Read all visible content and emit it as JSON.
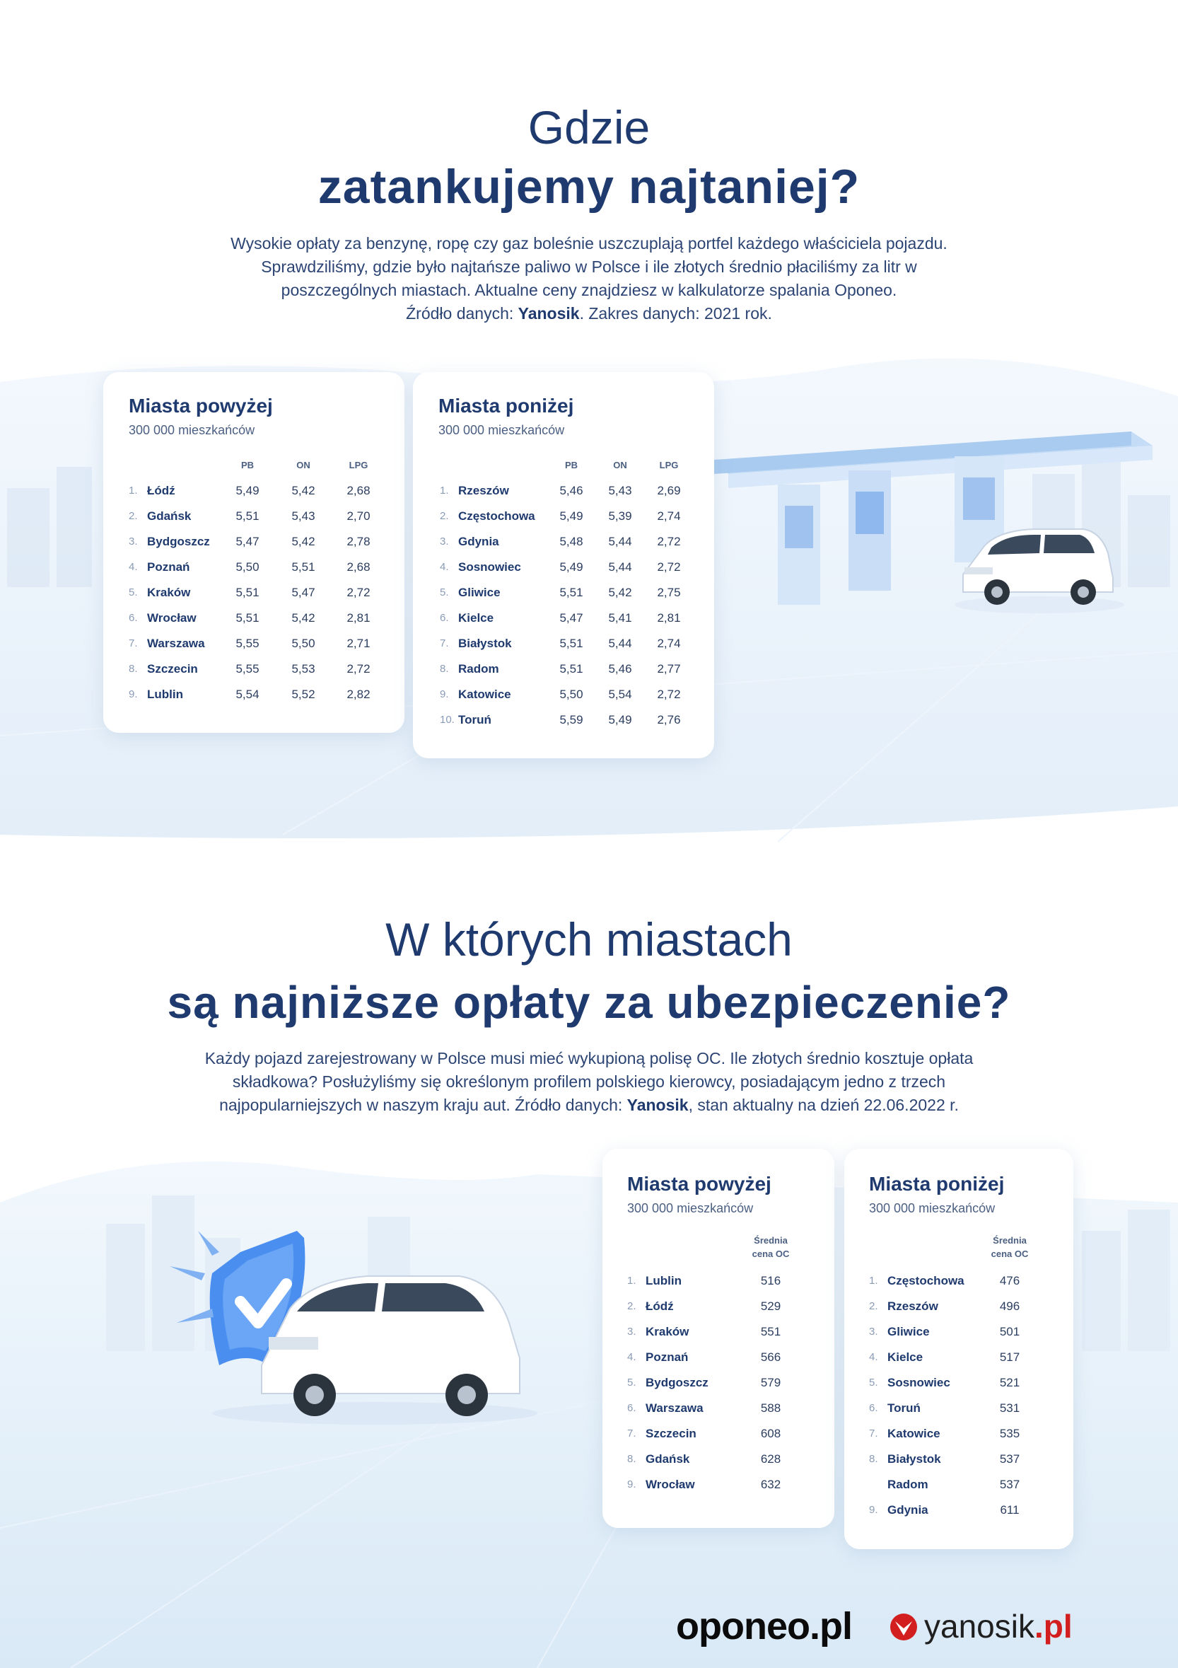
{
  "colors": {
    "heading": "#1f3a6e",
    "text": "#2c4474",
    "background_tint": "#e6f1fb",
    "accent_blue": "#4a8ff0",
    "brand_red": "#d21e1e"
  },
  "section1": {
    "title_light": "Gdzie",
    "title_bold": "zatankujemy najtaniej?",
    "intro": {
      "line1": "Wysokie opłaty za benzynę, ropę czy gaz boleśnie uszczuplają portfel każdego właściciela pojazdu.",
      "line2": "Sprawdziliśmy, gdzie było najtańsze paliwo w Polsce i ile złotych średnio płaciliśmy za litr w",
      "line3": "poszczególnych miastach. Aktualne ceny znajdziesz w kalkulatorze spalania Oponeo.",
      "line4_a": "Źródło danych: ",
      "line4_b": "Yanosik",
      "line4_c": ". Zakres danych: 2021 rok."
    },
    "tables": [
      {
        "title": "Miasta powyżej",
        "subtitle": "300 000 mieszkańców",
        "columns": [
          "PB",
          "ON",
          "LPG"
        ],
        "rows": [
          {
            "rank": "1.",
            "city": "Łódź",
            "pb": "5,49",
            "on": "5,42",
            "lpg": "2,68"
          },
          {
            "rank": "2.",
            "city": "Gdańsk",
            "pb": "5,51",
            "on": "5,43",
            "lpg": "2,70"
          },
          {
            "rank": "3.",
            "city": "Bydgoszcz",
            "pb": "5,47",
            "on": "5,42",
            "lpg": "2,78"
          },
          {
            "rank": "4.",
            "city": "Poznań",
            "pb": "5,50",
            "on": "5,51",
            "lpg": "2,68"
          },
          {
            "rank": "5.",
            "city": "Kraków",
            "pb": "5,51",
            "on": "5,47",
            "lpg": "2,72"
          },
          {
            "rank": "6.",
            "city": "Wrocław",
            "pb": "5,51",
            "on": "5,42",
            "lpg": "2,81"
          },
          {
            "rank": "7.",
            "city": "Warszawa",
            "pb": "5,55",
            "on": "5,50",
            "lpg": "2,71"
          },
          {
            "rank": "8.",
            "city": "Szczecin",
            "pb": "5,55",
            "on": "5,53",
            "lpg": "2,72"
          },
          {
            "rank": "9.",
            "city": "Lublin",
            "pb": "5,54",
            "on": "5,52",
            "lpg": "2,82"
          }
        ]
      },
      {
        "title": "Miasta poniżej",
        "subtitle": "300 000 mieszkańców",
        "columns": [
          "PB",
          "ON",
          "LPG"
        ],
        "rows": [
          {
            "rank": "1.",
            "city": "Rzeszów",
            "pb": "5,46",
            "on": "5,43",
            "lpg": "2,69"
          },
          {
            "rank": "2.",
            "city": "Częstochowa",
            "pb": "5,49",
            "on": "5,39",
            "lpg": "2,74"
          },
          {
            "rank": "3.",
            "city": "Gdynia",
            "pb": "5,48",
            "on": "5,44",
            "lpg": "2,72"
          },
          {
            "rank": "4.",
            "city": "Sosnowiec",
            "pb": "5,49",
            "on": "5,44",
            "lpg": "2,72"
          },
          {
            "rank": "5.",
            "city": "Gliwice",
            "pb": "5,51",
            "on": "5,42",
            "lpg": "2,75"
          },
          {
            "rank": "6.",
            "city": "Kielce",
            "pb": "5,47",
            "on": "5,41",
            "lpg": "2,81"
          },
          {
            "rank": "7.",
            "city": "Białystok",
            "pb": "5,51",
            "on": "5,44",
            "lpg": "2,74"
          },
          {
            "rank": "8.",
            "city": "Radom",
            "pb": "5,51",
            "on": "5,46",
            "lpg": "2,77"
          },
          {
            "rank": "9.",
            "city": "Katowice",
            "pb": "5,50",
            "on": "5,54",
            "lpg": "2,72"
          },
          {
            "rank": "10.",
            "city": "Toruń",
            "pb": "5,59",
            "on": "5,49",
            "lpg": "2,76"
          }
        ]
      }
    ]
  },
  "section2": {
    "title_light": "W których miastach",
    "title_bold": "są najniższe opłaty za ubezpieczenie?",
    "intro": {
      "line1": "Każdy pojazd zarejestrowany w Polsce musi mieć wykupioną polisę OC. Ile złotych średnio kosztuje opłata",
      "line2": "składkowa? Posłużyliśmy się określonym profilem polskiego kierowcy, posiadającym jedno z trzech",
      "line3_a": "najpopularniejszych w naszym kraju aut. Źródło danych: ",
      "line3_b": "Yanosik",
      "line3_c": ", stan aktualny na dzień 22.06.2022 r."
    },
    "tables": [
      {
        "title": "Miasta powyżej",
        "subtitle": "300 000 mieszkańców",
        "column_line1": "Średnia",
        "column_line2": "cena OC",
        "rows": [
          {
            "rank": "1.",
            "city": "Lublin",
            "price": "516"
          },
          {
            "rank": "2.",
            "city": "Łódź",
            "price": "529"
          },
          {
            "rank": "3.",
            "city": "Kraków",
            "price": "551"
          },
          {
            "rank": "4.",
            "city": "Poznań",
            "price": "566"
          },
          {
            "rank": "5.",
            "city": "Bydgoszcz",
            "price": "579"
          },
          {
            "rank": "6.",
            "city": "Warszawa",
            "price": "588"
          },
          {
            "rank": "7.",
            "city": "Szczecin",
            "price": "608"
          },
          {
            "rank": "8.",
            "city": "Gdańsk",
            "price": "628"
          },
          {
            "rank": "9.",
            "city": "Wrocław",
            "price": "632"
          }
        ]
      },
      {
        "title": "Miasta poniżej",
        "subtitle": "300 000 mieszkańców",
        "column_line1": "Średnia",
        "column_line2": "cena OC",
        "rows": [
          {
            "rank": "1.",
            "city": "Częstochowa",
            "price": "476"
          },
          {
            "rank": "2.",
            "city": "Rzeszów",
            "price": "496"
          },
          {
            "rank": "3.",
            "city": "Gliwice",
            "price": "501"
          },
          {
            "rank": "4.",
            "city": "Kielce",
            "price": "517"
          },
          {
            "rank": "5.",
            "city": "Sosnowiec",
            "price": "521"
          },
          {
            "rank": "6.",
            "city": "Toruń",
            "price": "531"
          },
          {
            "rank": "7.",
            "city": "Katowice",
            "price": "535"
          },
          {
            "rank": "8.",
            "city": "Białystok",
            "price": "537"
          },
          {
            "rank": "",
            "city": "Radom",
            "price": "537"
          },
          {
            "rank": "9.",
            "city": "Gdynia",
            "price": "611"
          }
        ]
      }
    ]
  },
  "footer": {
    "oponeo": "oponeo.pl",
    "yanosik_name": "yanosik",
    "yanosik_tld": ".pl"
  }
}
